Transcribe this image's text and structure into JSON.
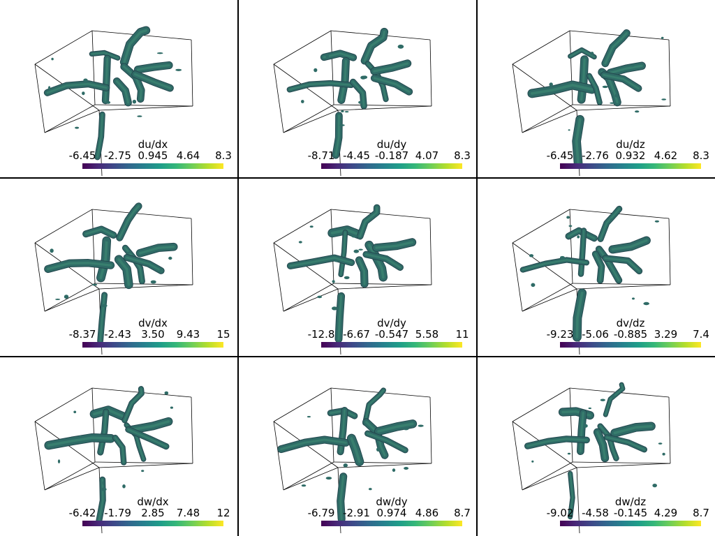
{
  "chart_data": [
    {
      "type": "isosurface-3d",
      "title": "du/dx",
      "colorbar": {
        "colormap": "viridis",
        "range": [
          -6.45,
          8.3
        ],
        "tick_labels": [
          "-6.45",
          "-2.75",
          "0.945",
          "4.64",
          "8.3"
        ]
      }
    },
    {
      "type": "isosurface-3d",
      "title": "du/dy",
      "colorbar": {
        "colormap": "viridis",
        "range": [
          -8.71,
          8.3
        ],
        "tick_labels": [
          "-8.71",
          "-4.45",
          "-0.187",
          "4.07",
          "8.3"
        ]
      }
    },
    {
      "type": "isosurface-3d",
      "title": "du/dz",
      "colorbar": {
        "colormap": "viridis",
        "range": [
          -6.45,
          8.3
        ],
        "tick_labels": [
          "-6.45",
          "-2.76",
          "0.932",
          "4.62",
          "8.3"
        ]
      }
    },
    {
      "type": "isosurface-3d",
      "title": "dv/dx",
      "colorbar": {
        "colormap": "viridis",
        "range": [
          -8.37,
          15
        ],
        "tick_labels": [
          "-8.37",
          "-2.43",
          "3.50",
          "9.43",
          "15"
        ]
      }
    },
    {
      "type": "isosurface-3d",
      "title": "dv/dy",
      "colorbar": {
        "colormap": "viridis",
        "range": [
          -12.8,
          11
        ],
        "tick_labels": [
          "-12.8",
          "-6.67",
          "-0.547",
          "5.58",
          "11"
        ]
      }
    },
    {
      "type": "isosurface-3d",
      "title": "dv/dz",
      "colorbar": {
        "colormap": "viridis",
        "range": [
          -9.23,
          7.4
        ],
        "tick_labels": [
          "-9.23",
          "-5.06",
          "-0.885",
          "3.29",
          "7.4"
        ]
      }
    },
    {
      "type": "isosurface-3d",
      "title": "dw/dx",
      "colorbar": {
        "colormap": "viridis",
        "range": [
          -6.42,
          12
        ],
        "tick_labels": [
          "-6.42",
          "-1.79",
          "2.85",
          "7.48",
          "12"
        ]
      }
    },
    {
      "type": "isosurface-3d",
      "title": "dw/dy",
      "colorbar": {
        "colormap": "viridis",
        "range": [
          -6.79,
          8.7
        ],
        "tick_labels": [
          "-6.79",
          "-2.91",
          "0.974",
          "4.86",
          "8.7"
        ]
      }
    },
    {
      "type": "isosurface-3d",
      "title": "dw/dz",
      "colorbar": {
        "colormap": "viridis",
        "range": [
          -9.02,
          8.7
        ],
        "tick_labels": [
          "-9.02",
          "-4.58",
          "-0.145",
          "4.29",
          "8.7"
        ]
      }
    }
  ],
  "colors": {
    "surface": "#2f6b66",
    "surface_dark": "#24484f",
    "surface_light": "#3f8a73",
    "box": "#000000",
    "background": "#ffffff"
  }
}
